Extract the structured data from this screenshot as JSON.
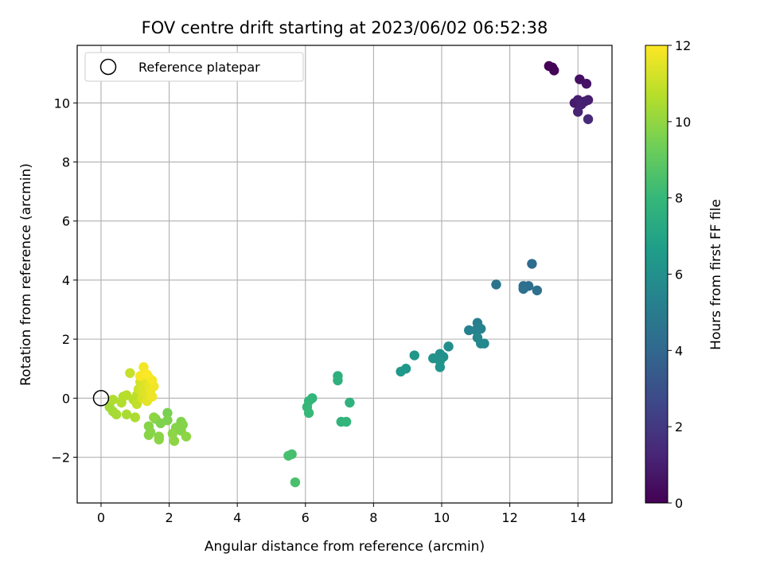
{
  "chart_data": {
    "type": "scatter",
    "title": "FOV centre drift starting at 2023/06/02 06:52:38",
    "xlabel": "Angular distance from reference (arcmin)",
    "ylabel": "Rotation from reference (arcmin)",
    "xlim": [
      -0.7,
      15.0
    ],
    "ylim": [
      -3.55,
      11.95
    ],
    "xticks": [
      0,
      2,
      4,
      6,
      8,
      10,
      12,
      14
    ],
    "yticks": [
      -2,
      0,
      2,
      4,
      6,
      8,
      10
    ],
    "grid": true,
    "legend": {
      "placement": "top-left",
      "entries": [
        "Reference platepar"
      ]
    },
    "reference_point": {
      "x": 0,
      "y": 0
    },
    "colorbar": {
      "label": "Hours from first FF file",
      "range": [
        0,
        12
      ],
      "ticks": [
        0,
        2,
        4,
        6,
        8,
        10,
        12
      ],
      "colormap": "viridis",
      "colors": [
        "#440154",
        "#482878",
        "#3e4989",
        "#31688e",
        "#26828e",
        "#1f9e89",
        "#35b779",
        "#6ece58",
        "#b5de2b",
        "#fde725"
      ]
    },
    "points": [
      {
        "x": 13.15,
        "y": 11.25,
        "h": 0.05
      },
      {
        "x": 13.25,
        "y": 11.2,
        "h": 0.1
      },
      {
        "x": 13.3,
        "y": 11.1,
        "h": 0.15
      },
      {
        "x": 14.05,
        "y": 10.8,
        "h": 0.5
      },
      {
        "x": 14.25,
        "y": 10.65,
        "h": 0.6
      },
      {
        "x": 13.9,
        "y": 10.0,
        "h": 0.9
      },
      {
        "x": 14.0,
        "y": 10.1,
        "h": 0.95
      },
      {
        "x": 14.2,
        "y": 10.05,
        "h": 1.0
      },
      {
        "x": 14.3,
        "y": 10.1,
        "h": 1.05
      },
      {
        "x": 14.1,
        "y": 9.95,
        "h": 1.1
      },
      {
        "x": 14.0,
        "y": 9.7,
        "h": 1.2
      },
      {
        "x": 14.3,
        "y": 9.45,
        "h": 1.4
      },
      {
        "x": 12.65,
        "y": 4.55,
        "h": 4.2
      },
      {
        "x": 11.6,
        "y": 3.85,
        "h": 4.6
      },
      {
        "x": 12.4,
        "y": 3.8,
        "h": 4.3
      },
      {
        "x": 12.55,
        "y": 3.8,
        "h": 4.35
      },
      {
        "x": 12.4,
        "y": 3.7,
        "h": 4.4
      },
      {
        "x": 12.8,
        "y": 3.65,
        "h": 4.45
      },
      {
        "x": 11.05,
        "y": 2.55,
        "h": 5.2
      },
      {
        "x": 10.8,
        "y": 2.3,
        "h": 5.3
      },
      {
        "x": 11.0,
        "y": 2.3,
        "h": 5.35
      },
      {
        "x": 11.15,
        "y": 2.35,
        "h": 5.4
      },
      {
        "x": 11.05,
        "y": 2.05,
        "h": 5.5
      },
      {
        "x": 11.15,
        "y": 1.85,
        "h": 5.6
      },
      {
        "x": 11.25,
        "y": 1.85,
        "h": 5.65
      },
      {
        "x": 10.2,
        "y": 1.75,
        "h": 5.9
      },
      {
        "x": 9.2,
        "y": 1.45,
        "h": 6.3
      },
      {
        "x": 9.95,
        "y": 1.5,
        "h": 6.0
      },
      {
        "x": 10.05,
        "y": 1.4,
        "h": 6.05
      },
      {
        "x": 9.75,
        "y": 1.35,
        "h": 6.1
      },
      {
        "x": 9.95,
        "y": 1.25,
        "h": 6.15
      },
      {
        "x": 9.95,
        "y": 1.05,
        "h": 6.2
      },
      {
        "x": 8.95,
        "y": 1.0,
        "h": 6.4
      },
      {
        "x": 8.8,
        "y": 0.9,
        "h": 6.45
      },
      {
        "x": 6.95,
        "y": 0.75,
        "h": 7.6
      },
      {
        "x": 6.95,
        "y": 0.6,
        "h": 7.65
      },
      {
        "x": 6.2,
        "y": 0.0,
        "h": 7.9
      },
      {
        "x": 6.1,
        "y": -0.1,
        "h": 7.95
      },
      {
        "x": 7.3,
        "y": -0.15,
        "h": 7.7
      },
      {
        "x": 6.05,
        "y": -0.3,
        "h": 8.0
      },
      {
        "x": 6.1,
        "y": -0.5,
        "h": 8.05
      },
      {
        "x": 7.05,
        "y": -0.8,
        "h": 7.8
      },
      {
        "x": 7.2,
        "y": -0.8,
        "h": 7.85
      },
      {
        "x": 5.6,
        "y": -1.9,
        "h": 8.4
      },
      {
        "x": 5.5,
        "y": -1.95,
        "h": 8.45
      },
      {
        "x": 5.7,
        "y": -2.85,
        "h": 8.5
      },
      {
        "x": 1.95,
        "y": -0.5,
        "h": 9.5
      },
      {
        "x": 1.6,
        "y": -0.7,
        "h": 9.55
      },
      {
        "x": 1.95,
        "y": -0.75,
        "h": 9.6
      },
      {
        "x": 1.75,
        "y": -0.85,
        "h": 9.65
      },
      {
        "x": 2.35,
        "y": -0.8,
        "h": 9.7
      },
      {
        "x": 2.4,
        "y": -0.9,
        "h": 9.72
      },
      {
        "x": 2.2,
        "y": -1.0,
        "h": 9.74
      },
      {
        "x": 2.35,
        "y": -1.1,
        "h": 9.76
      },
      {
        "x": 1.4,
        "y": -0.95,
        "h": 9.78
      },
      {
        "x": 1.45,
        "y": -1.15,
        "h": 9.8
      },
      {
        "x": 1.4,
        "y": -1.25,
        "h": 9.82
      },
      {
        "x": 1.7,
        "y": -1.3,
        "h": 9.84
      },
      {
        "x": 1.7,
        "y": -1.4,
        "h": 9.86
      },
      {
        "x": 2.1,
        "y": -1.2,
        "h": 9.88
      },
      {
        "x": 2.5,
        "y": -1.3,
        "h": 9.9
      },
      {
        "x": 2.15,
        "y": -1.45,
        "h": 9.92
      },
      {
        "x": 1.55,
        "y": -0.65,
        "h": 9.94
      },
      {
        "x": 0.25,
        "y": -0.3,
        "h": 10.3
      },
      {
        "x": 0.35,
        "y": -0.45,
        "h": 10.35
      },
      {
        "x": 0.45,
        "y": -0.55,
        "h": 10.4
      },
      {
        "x": 0.75,
        "y": -0.55,
        "h": 10.45
      },
      {
        "x": 1.0,
        "y": -0.65,
        "h": 10.5
      },
      {
        "x": 0.35,
        "y": -0.05,
        "h": 10.55
      },
      {
        "x": 0.6,
        "y": -0.15,
        "h": 10.6
      },
      {
        "x": 0.65,
        "y": 0.05,
        "h": 10.65
      },
      {
        "x": 0.75,
        "y": 0.1,
        "h": 10.7
      },
      {
        "x": 0.95,
        "y": -0.05,
        "h": 10.75
      },
      {
        "x": 1.05,
        "y": 0.1,
        "h": 10.8
      },
      {
        "x": 0.85,
        "y": 0.85,
        "h": 11.0
      },
      {
        "x": 1.05,
        "y": -0.2,
        "h": 10.85
      },
      {
        "x": 1.1,
        "y": 0.3,
        "h": 11.1
      },
      {
        "x": 1.15,
        "y": 0.55,
        "h": 11.2
      },
      {
        "x": 1.2,
        "y": 0.0,
        "h": 11.25
      },
      {
        "x": 1.2,
        "y": 0.25,
        "h": 11.3
      },
      {
        "x": 1.25,
        "y": 0.4,
        "h": 11.35
      },
      {
        "x": 1.3,
        "y": 0.6,
        "h": 11.4
      },
      {
        "x": 1.3,
        "y": 0.15,
        "h": 11.45
      },
      {
        "x": 1.35,
        "y": -0.1,
        "h": 11.5
      },
      {
        "x": 1.4,
        "y": 0.45,
        "h": 11.55
      },
      {
        "x": 1.4,
        "y": 0.7,
        "h": 11.6
      },
      {
        "x": 1.45,
        "y": 0.25,
        "h": 11.65
      },
      {
        "x": 1.5,
        "y": 0.05,
        "h": 11.7
      },
      {
        "x": 1.55,
        "y": 0.4,
        "h": 11.75
      },
      {
        "x": 1.25,
        "y": 1.05,
        "h": 11.8
      },
      {
        "x": 1.5,
        "y": 0.6,
        "h": 11.85
      },
      {
        "x": 1.15,
        "y": 0.75,
        "h": 11.9
      },
      {
        "x": 1.35,
        "y": 0.8,
        "h": 11.95
      }
    ]
  }
}
